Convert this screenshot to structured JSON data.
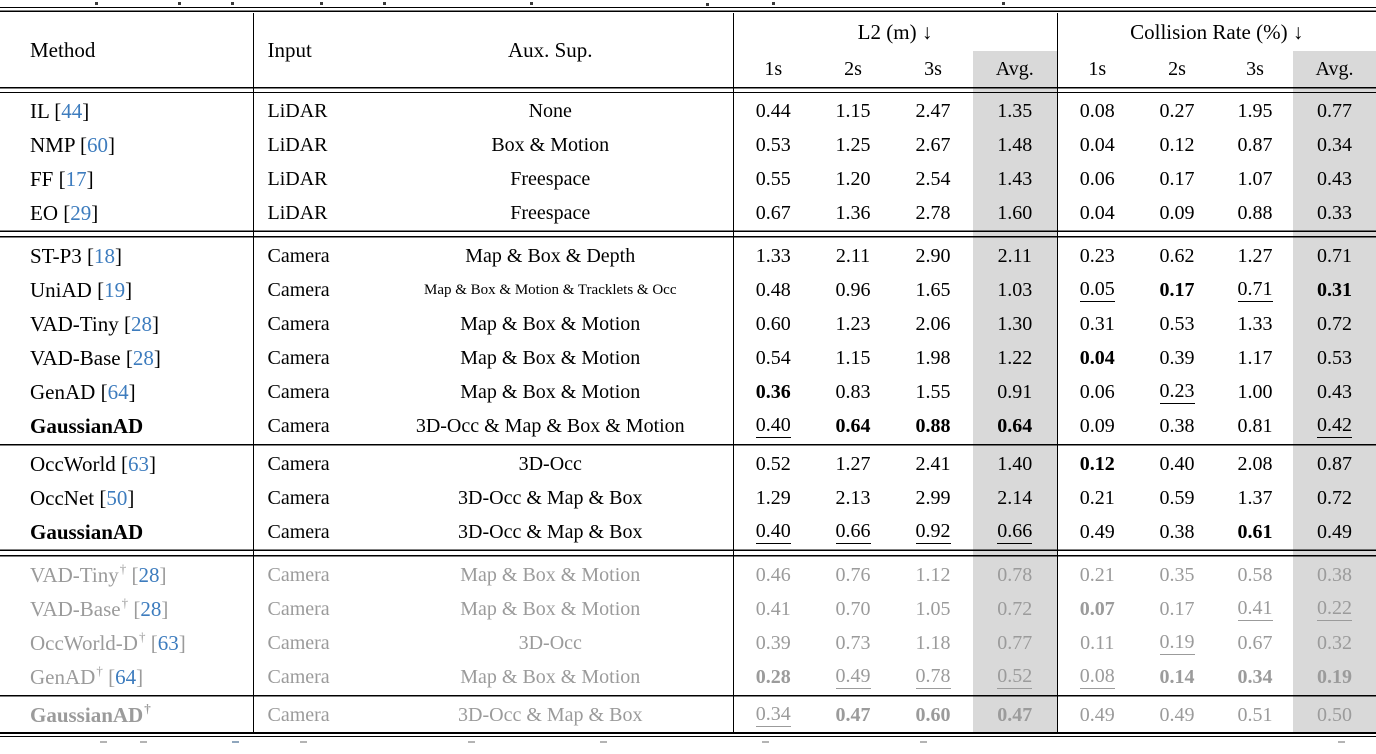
{
  "colors": {
    "citation_blue": "#3d7cbe",
    "gray_text": "#9b9b9b",
    "avg_shade": "#d9d9d9",
    "rule_black": "#000000"
  },
  "table": {
    "headers": {
      "method": "Method",
      "input": "Input",
      "aux": "Aux. Sup.",
      "l2_group": "L2 (m) ↓",
      "collision_group": "Collision Rate (%) ↓",
      "sub": [
        "1s",
        "2s",
        "3s",
        "Avg."
      ]
    },
    "rows": [
      {
        "method": "IL",
        "cite": "44",
        "input": "LiDAR",
        "aux": "None",
        "values": [
          [
            "0.44",
            "n"
          ],
          [
            "1.15",
            "n"
          ],
          [
            "2.47",
            "n"
          ],
          [
            "1.35",
            "n"
          ],
          [
            "0.08",
            "n"
          ],
          [
            "0.27",
            "n"
          ],
          [
            "1.95",
            "n"
          ],
          [
            "0.77",
            "n"
          ]
        ]
      },
      {
        "method": "NMP",
        "cite": "60",
        "input": "LiDAR",
        "aux": "Box & Motion",
        "values": [
          [
            "0.53",
            "n"
          ],
          [
            "1.25",
            "n"
          ],
          [
            "2.67",
            "n"
          ],
          [
            "1.48",
            "n"
          ],
          [
            "0.04",
            "n"
          ],
          [
            "0.12",
            "n"
          ],
          [
            "0.87",
            "n"
          ],
          [
            "0.34",
            "n"
          ]
        ]
      },
      {
        "method": "FF",
        "cite": "17",
        "input": "LiDAR",
        "aux": "Freespace",
        "values": [
          [
            "0.55",
            "n"
          ],
          [
            "1.20",
            "n"
          ],
          [
            "2.54",
            "n"
          ],
          [
            "1.43",
            "n"
          ],
          [
            "0.06",
            "n"
          ],
          [
            "0.17",
            "n"
          ],
          [
            "1.07",
            "n"
          ],
          [
            "0.43",
            "n"
          ]
        ]
      },
      {
        "method": "EO",
        "cite": "29",
        "input": "LiDAR",
        "aux": "Freespace",
        "values": [
          [
            "0.67",
            "n"
          ],
          [
            "1.36",
            "n"
          ],
          [
            "2.78",
            "n"
          ],
          [
            "1.60",
            "n"
          ],
          [
            "0.04",
            "n"
          ],
          [
            "0.09",
            "n"
          ],
          [
            "0.88",
            "n"
          ],
          [
            "0.33",
            "n"
          ]
        ]
      },
      {
        "rule": "double"
      },
      {
        "method": "ST-P3",
        "cite": "18",
        "input": "Camera",
        "aux": "Map & Box & Depth",
        "values": [
          [
            "1.33",
            "n"
          ],
          [
            "2.11",
            "n"
          ],
          [
            "2.90",
            "n"
          ],
          [
            "2.11",
            "n"
          ],
          [
            "0.23",
            "n"
          ],
          [
            "0.62",
            "n"
          ],
          [
            "1.27",
            "n"
          ],
          [
            "0.71",
            "n"
          ]
        ]
      },
      {
        "method": "UniAD",
        "cite": "19",
        "input": "Camera",
        "aux": "Map & Box & Motion & Tracklets & Occ",
        "small": true,
        "values": [
          [
            "0.48",
            "n"
          ],
          [
            "0.96",
            "n"
          ],
          [
            "1.65",
            "n"
          ],
          [
            "1.03",
            "n"
          ],
          [
            "0.05",
            "u"
          ],
          [
            "0.17",
            "b"
          ],
          [
            "0.71",
            "u"
          ],
          [
            "0.31",
            "b"
          ]
        ]
      },
      {
        "method": "VAD-Tiny",
        "cite": "28",
        "input": "Camera",
        "aux": "Map & Box & Motion",
        "values": [
          [
            "0.60",
            "n"
          ],
          [
            "1.23",
            "n"
          ],
          [
            "2.06",
            "n"
          ],
          [
            "1.30",
            "n"
          ],
          [
            "0.31",
            "n"
          ],
          [
            "0.53",
            "n"
          ],
          [
            "1.33",
            "n"
          ],
          [
            "0.72",
            "n"
          ]
        ]
      },
      {
        "method": "VAD-Base",
        "cite": "28",
        "input": "Camera",
        "aux": "Map & Box & Motion",
        "values": [
          [
            "0.54",
            "n"
          ],
          [
            "1.15",
            "n"
          ],
          [
            "1.98",
            "n"
          ],
          [
            "1.22",
            "n"
          ],
          [
            "0.04",
            "b"
          ],
          [
            "0.39",
            "n"
          ],
          [
            "1.17",
            "n"
          ],
          [
            "0.53",
            "n"
          ]
        ]
      },
      {
        "method": "GenAD",
        "cite": "64",
        "input": "Camera",
        "aux": "Map & Box & Motion",
        "values": [
          [
            "0.36",
            "b"
          ],
          [
            "0.83",
            "n"
          ],
          [
            "1.55",
            "n"
          ],
          [
            "0.91",
            "n"
          ],
          [
            "0.06",
            "n"
          ],
          [
            "0.23",
            "u"
          ],
          [
            "1.00",
            "n"
          ],
          [
            "0.43",
            "n"
          ]
        ]
      },
      {
        "method": "GaussianAD",
        "mb": true,
        "input": "Camera",
        "aux": "3D-Occ & Map & Box & Motion",
        "values": [
          [
            "0.40",
            "u"
          ],
          [
            "0.64",
            "b"
          ],
          [
            "0.88",
            "b"
          ],
          [
            "0.64",
            "b"
          ],
          [
            "0.09",
            "n"
          ],
          [
            "0.38",
            "n"
          ],
          [
            "0.81",
            "n"
          ],
          [
            "0.42",
            "u"
          ]
        ]
      },
      {
        "rule": "single"
      },
      {
        "method": "OccWorld",
        "cite": "63",
        "input": "Camera",
        "aux": "3D-Occ",
        "values": [
          [
            "0.52",
            "n"
          ],
          [
            "1.27",
            "n"
          ],
          [
            "2.41",
            "n"
          ],
          [
            "1.40",
            "n"
          ],
          [
            "0.12",
            "b"
          ],
          [
            "0.40",
            "n"
          ],
          [
            "2.08",
            "n"
          ],
          [
            "0.87",
            "n"
          ]
        ]
      },
      {
        "method": "OccNet",
        "cite": "50",
        "input": "Camera",
        "aux": "3D-Occ & Map & Box",
        "values": [
          [
            "1.29",
            "n"
          ],
          [
            "2.13",
            "n"
          ],
          [
            "2.99",
            "n"
          ],
          [
            "2.14",
            "n"
          ],
          [
            "0.21",
            "n"
          ],
          [
            "0.59",
            "n"
          ],
          [
            "1.37",
            "n"
          ],
          [
            "0.72",
            "n"
          ]
        ]
      },
      {
        "method": "GaussianAD",
        "mb": true,
        "input": "Camera",
        "aux": "3D-Occ & Map & Box",
        "values": [
          [
            "0.40",
            "u"
          ],
          [
            "0.66",
            "u"
          ],
          [
            "0.92",
            "u"
          ],
          [
            "0.66",
            "u"
          ],
          [
            "0.49",
            "n"
          ],
          [
            "0.38",
            "n"
          ],
          [
            "0.61",
            "b"
          ],
          [
            "0.49",
            "n"
          ]
        ]
      },
      {
        "rule": "double"
      },
      {
        "method": "VAD-Tiny",
        "dagger": true,
        "cite": "28",
        "gray": true,
        "input": "Camera",
        "aux": "Map & Box & Motion",
        "values": [
          [
            "0.46",
            "n"
          ],
          [
            "0.76",
            "n"
          ],
          [
            "1.12",
            "n"
          ],
          [
            "0.78",
            "n"
          ],
          [
            "0.21",
            "n"
          ],
          [
            "0.35",
            "n"
          ],
          [
            "0.58",
            "n"
          ],
          [
            "0.38",
            "n"
          ]
        ]
      },
      {
        "method": "VAD-Base",
        "dagger": true,
        "cite": "28",
        "gray": true,
        "input": "Camera",
        "aux": "Map & Box & Motion",
        "values": [
          [
            "0.41",
            "n"
          ],
          [
            "0.70",
            "n"
          ],
          [
            "1.05",
            "n"
          ],
          [
            "0.72",
            "n"
          ],
          [
            "0.07",
            "b"
          ],
          [
            "0.17",
            "n"
          ],
          [
            "0.41",
            "u"
          ],
          [
            "0.22",
            "u"
          ]
        ]
      },
      {
        "method": "OccWorld-D",
        "dagger": true,
        "cite": "63",
        "gray": true,
        "input": "Camera",
        "aux": "3D-Occ",
        "values": [
          [
            "0.39",
            "n"
          ],
          [
            "0.73",
            "n"
          ],
          [
            "1.18",
            "n"
          ],
          [
            "0.77",
            "n"
          ],
          [
            "0.11",
            "n"
          ],
          [
            "0.19",
            "u"
          ],
          [
            "0.67",
            "n"
          ],
          [
            "0.32",
            "n"
          ]
        ]
      },
      {
        "method": "GenAD",
        "dagger": true,
        "cite": "64",
        "gray": true,
        "input": "Camera",
        "aux": "Map & Box & Motion",
        "values": [
          [
            "0.28",
            "b"
          ],
          [
            "0.49",
            "u"
          ],
          [
            "0.78",
            "u"
          ],
          [
            "0.52",
            "u"
          ],
          [
            "0.08",
            "u"
          ],
          [
            "0.14",
            "b"
          ],
          [
            "0.34",
            "b"
          ],
          [
            "0.19",
            "b"
          ]
        ]
      },
      {
        "rule": "single"
      },
      {
        "method": "GaussianAD",
        "dagger": true,
        "mb": true,
        "gray": true,
        "input": "Camera",
        "aux": "3D-Occ & Map & Box",
        "values": [
          [
            "0.34",
            "u"
          ],
          [
            "0.47",
            "b"
          ],
          [
            "0.60",
            "b"
          ],
          [
            "0.47",
            "b"
          ],
          [
            "0.49",
            "n"
          ],
          [
            "0.49",
            "n"
          ],
          [
            "0.51",
            "n"
          ],
          [
            "0.50",
            "n"
          ]
        ]
      }
    ]
  }
}
